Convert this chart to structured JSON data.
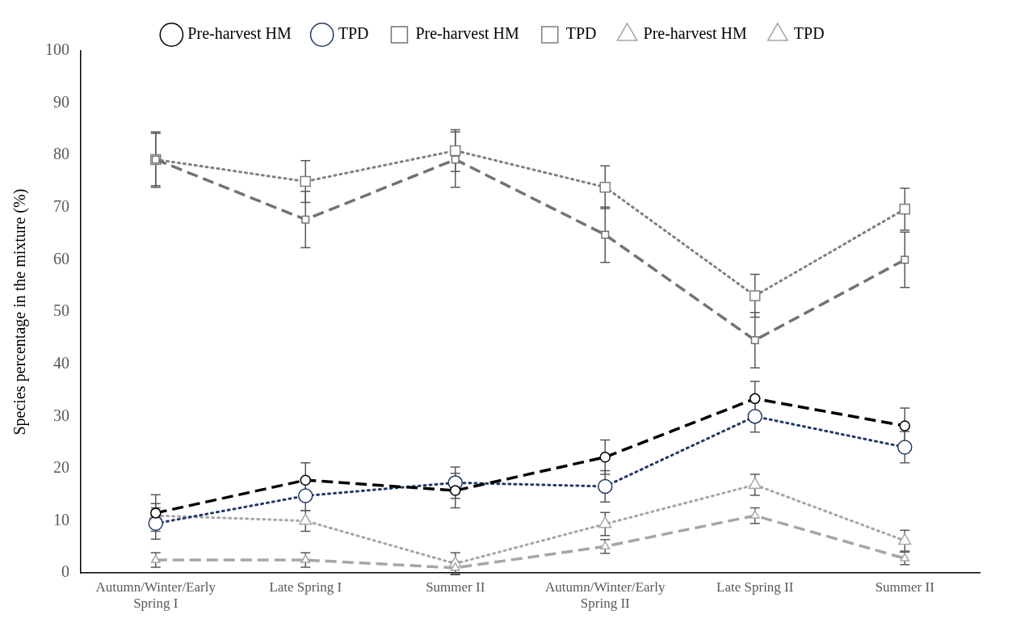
{
  "chart_data": {
    "type": "line",
    "ylabel": "Species percentage in the mixture (%)",
    "categories": [
      "Autumn/Winter/Early Spring I",
      "Late Spring I",
      "Summer II",
      "Autumn/Winter/Early Spring II",
      "Late Spring II",
      "Summer II"
    ],
    "ylim": [
      0,
      100
    ],
    "yticks": [
      0,
      10,
      20,
      30,
      40,
      50,
      60,
      70,
      80,
      90,
      100
    ],
    "grid": false,
    "legend": "top",
    "series": [
      {
        "name": "Pre-harvest HM",
        "color": "#000000",
        "marker": "circle",
        "line_style": "dashed",
        "values": [
          11.5,
          17.8,
          15.8,
          22.2,
          33.4,
          28.2
        ],
        "errors": [
          3.5,
          3.3,
          3.3,
          3.3,
          3.3,
          3.4
        ]
      },
      {
        "name": "TPD",
        "color": "#203864",
        "marker": "circle",
        "line_style": "dotted",
        "values": [
          9.5,
          14.8,
          17.3,
          16.6,
          30,
          24.1
        ],
        "errors": [
          3,
          2.8,
          3,
          3,
          3,
          3
        ]
      },
      {
        "name": "Pre-harvest HM",
        "color": "#767171",
        "marker": "square",
        "line_style": "dashed",
        "values": [
          79.2,
          67.7,
          79.2,
          64.8,
          44.6,
          60
        ],
        "errors": [
          5,
          5.4,
          5.3,
          5.3,
          5.3,
          5.3
        ]
      },
      {
        "name": "TPD",
        "color": "#7f7f7f",
        "marker": "square",
        "line_style": "dotted",
        "values": [
          79.2,
          75,
          80.9,
          73.9,
          53.1,
          69.7
        ],
        "errors": [
          5.3,
          4,
          4,
          4.1,
          4.1,
          4
        ]
      },
      {
        "name": "Pre-harvest HM",
        "color": "#a6a6a6",
        "marker": "triangle",
        "line_style": "dashed",
        "values": [
          2.5,
          2.5,
          1,
          5.1,
          11,
          2.8
        ],
        "errors": [
          1.4,
          1.4,
          1.2,
          1.3,
          1.5,
          1.2
        ]
      },
      {
        "name": "TPD",
        "color": "#a6a6a6",
        "marker": "triangle",
        "line_style": "dotted",
        "values": [
          11,
          10,
          1.8,
          9.4,
          16.9,
          6.2
        ],
        "errors": [
          2.3,
          2,
          2.1,
          2.2,
          2,
          2
        ]
      }
    ]
  }
}
